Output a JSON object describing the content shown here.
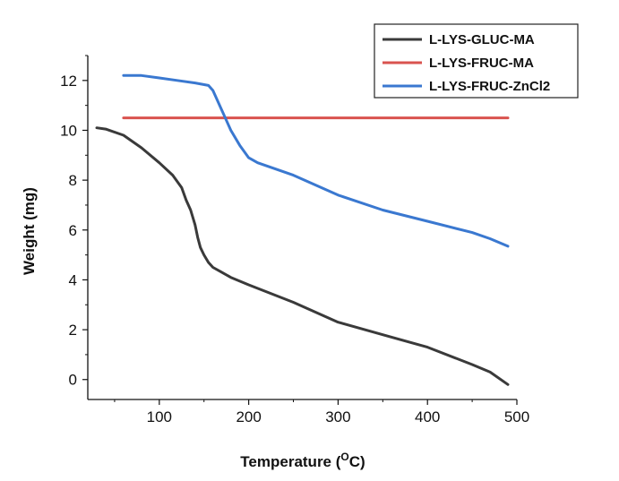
{
  "chart_data": {
    "type": "line",
    "title": "",
    "xlabel": "Temperature (",
    "xlabel_sup": "O",
    "xlabel_suffix": "C)",
    "ylabel": "Weight (mg)",
    "xlim": [
      20,
      500
    ],
    "ylim": [
      -0.8,
      13
    ],
    "xticks": [
      100,
      200,
      300,
      400,
      500
    ],
    "yticks": [
      0,
      2,
      4,
      6,
      8,
      10,
      12
    ],
    "grid": false,
    "legend_position": "top-right",
    "series": [
      {
        "name": "L-LYS-GLUC-MA",
        "color": "#3a3a3a",
        "x": [
          30,
          40,
          60,
          80,
          100,
          115,
          125,
          130,
          135,
          140,
          143,
          146,
          150,
          155,
          160,
          170,
          180,
          200,
          250,
          300,
          350,
          400,
          450,
          470,
          490
        ],
        "y": [
          10.1,
          10.05,
          9.8,
          9.3,
          8.7,
          8.2,
          7.7,
          7.2,
          6.8,
          6.2,
          5.7,
          5.3,
          5.0,
          4.7,
          4.5,
          4.3,
          4.1,
          3.8,
          3.1,
          2.3,
          1.8,
          1.3,
          0.6,
          0.3,
          -0.2
        ]
      },
      {
        "name": "L-LYS-FRUC-MA",
        "color": "#d9534f",
        "x": [
          60,
          490
        ],
        "y": [
          10.5,
          10.5
        ]
      },
      {
        "name": "L-LYS-FRUC-ZnCl2",
        "color": "#3a78d0",
        "x": [
          60,
          70,
          80,
          100,
          120,
          140,
          155,
          160,
          165,
          170,
          180,
          190,
          200,
          210,
          250,
          300,
          350,
          400,
          450,
          470,
          490
        ],
        "y": [
          12.2,
          12.2,
          12.2,
          12.1,
          12.0,
          11.9,
          11.8,
          11.6,
          11.2,
          10.8,
          10.0,
          9.4,
          8.9,
          8.7,
          8.2,
          7.4,
          6.8,
          6.35,
          5.9,
          5.65,
          5.35
        ]
      }
    ]
  }
}
